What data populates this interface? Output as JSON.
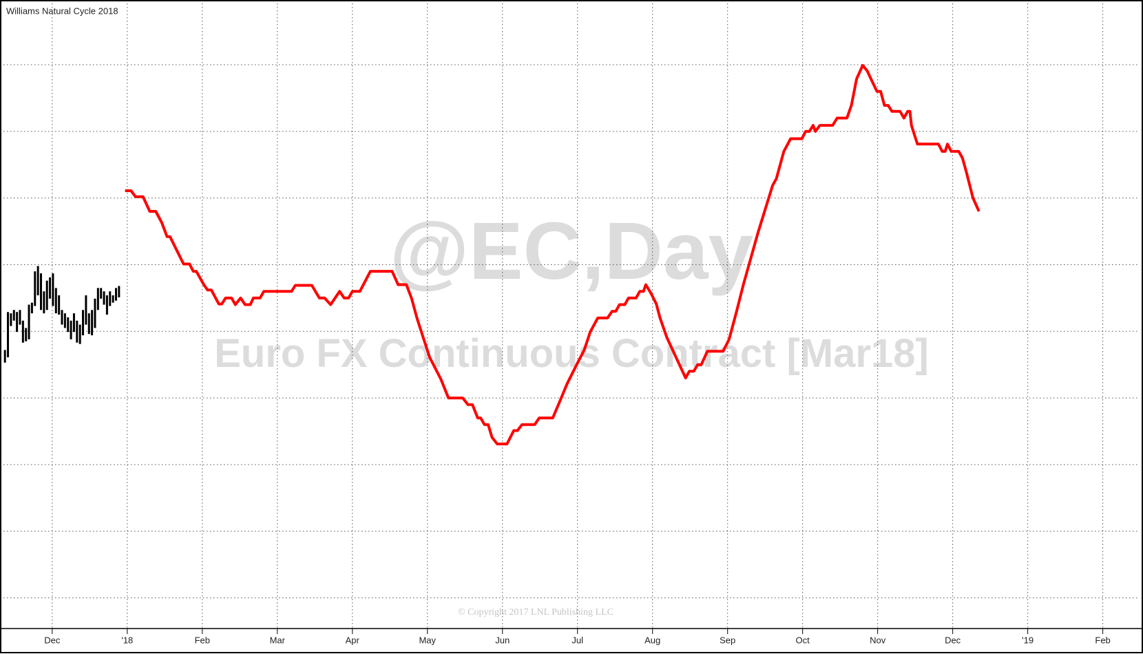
{
  "chart_data": {
    "type": "line",
    "title": "Williams Natural Cycle 2018",
    "watermark": "@EC,Day",
    "watermark_subtitle": "Euro FX Continuous Contract [Mar18]",
    "copyright": "© Copyright 2017 LNL Publishing LLC",
    "xlim": [
      -0.65,
      14.49
    ],
    "ylim": [
      0.54,
      9.92
    ],
    "xticks": [
      {
        "value": 0,
        "label": "Dec"
      },
      {
        "value": 1,
        "label": "'18"
      },
      {
        "value": 2,
        "label": "Feb"
      },
      {
        "value": 3,
        "label": "Mar"
      },
      {
        "value": 4,
        "label": "Apr"
      },
      {
        "value": 5,
        "label": "May"
      },
      {
        "value": 6,
        "label": "Jun"
      },
      {
        "value": 7,
        "label": "Jul"
      },
      {
        "value": 8,
        "label": "Aug"
      },
      {
        "value": 9,
        "label": "Sep"
      },
      {
        "value": 10,
        "label": "Oct"
      },
      {
        "value": 11,
        "label": "Nov"
      },
      {
        "value": 12,
        "label": "Dec"
      },
      {
        "value": 13,
        "label": "'19"
      },
      {
        "value": 14,
        "label": "Feb"
      }
    ],
    "yticks": [
      1,
      2,
      3,
      4,
      5,
      6,
      7,
      8,
      9
    ],
    "grid": true,
    "series": [
      {
        "color": "#000000",
        "x": [
          -0.63,
          -0.59,
          -0.55,
          -0.51,
          -0.47,
          -0.43,
          -0.39,
          -0.35,
          -0.31,
          -0.27,
          -0.23,
          -0.19,
          -0.15,
          -0.11,
          -0.07,
          -0.03,
          0.01,
          0.05,
          0.09,
          0.13,
          0.17,
          0.21,
          0.25,
          0.29,
          0.33,
          0.37,
          0.41,
          0.45,
          0.49,
          0.53,
          0.57,
          0.61,
          0.65,
          0.69,
          0.73,
          0.77,
          0.81,
          0.85,
          0.89
        ],
        "high": [
          4.72,
          5.29,
          5.27,
          5.32,
          5.29,
          5.32,
          5.16,
          5.05,
          5.4,
          5.43,
          5.9,
          5.98,
          5.87,
          5.6,
          5.76,
          5.81,
          5.87,
          5.65,
          5.54,
          5.32,
          5.27,
          5.21,
          5.16,
          5.27,
          5.16,
          5.1,
          5.32,
          5.54,
          5.27,
          5.32,
          5.49,
          5.65,
          5.65,
          5.6,
          5.54,
          5.6,
          5.54,
          5.65,
          5.68
        ],
        "low": [
          4.53,
          4.61,
          5.08,
          5.16,
          4.99,
          5.1,
          4.83,
          4.85,
          4.88,
          5.27,
          5.38,
          5.54,
          5.32,
          5.27,
          5.32,
          5.49,
          5.38,
          5.27,
          5.25,
          5.1,
          5.05,
          4.99,
          4.88,
          4.99,
          4.83,
          4.81,
          4.94,
          5.1,
          4.96,
          4.94,
          5.05,
          5.32,
          5.49,
          5.4,
          5.25,
          5.38,
          5.43,
          5.46,
          5.51
        ]
      },
      {
        "color": "#ff0000",
        "x": [
          0.97,
          1.05,
          1.11,
          1.21,
          1.3,
          1.38,
          1.46,
          1.53,
          1.57,
          1.75,
          1.83,
          1.88,
          1.92,
          2.02,
          2.07,
          2.12,
          2.22,
          2.26,
          2.31,
          2.39,
          2.44,
          2.51,
          2.57,
          2.64,
          2.68,
          2.77,
          2.82,
          3.19,
          3.24,
          3.46,
          3.56,
          3.63,
          3.71,
          3.77,
          3.83,
          3.89,
          3.95,
          4.0,
          4.1,
          4.24,
          4.53,
          4.61,
          4.72,
          4.79,
          4.86,
          4.92,
          5.03,
          5.18,
          5.28,
          5.47,
          5.54,
          5.6,
          5.67,
          5.71,
          5.76,
          5.81,
          5.86,
          5.93,
          6.06,
          6.15,
          6.2,
          6.26,
          6.43,
          6.49,
          6.67,
          6.78,
          6.86,
          6.98,
          7.09,
          7.17,
          7.27,
          7.4,
          7.46,
          7.51,
          7.56,
          7.63,
          7.68,
          7.78,
          7.83,
          7.88,
          7.91,
          7.98,
          8.05,
          8.1,
          8.19,
          8.44,
          8.49,
          8.55,
          8.6,
          8.65,
          8.73,
          8.94,
          9.02,
          9.12,
          9.21,
          9.31,
          9.41,
          9.6,
          9.65,
          9.75,
          9.84,
          9.99,
          10.04,
          10.09,
          10.14,
          10.17,
          10.23,
          10.4,
          10.46,
          10.59,
          10.65,
          10.72,
          10.8,
          10.86,
          10.91,
          10.99,
          11.04,
          11.09,
          11.14,
          11.19,
          11.3,
          11.35,
          11.4,
          11.43,
          11.45,
          11.53,
          11.81,
          11.86,
          11.9,
          11.93,
          11.98,
          12.08,
          12.13,
          12.18,
          12.27,
          12.35
        ],
        "values": [
          7.11,
          7.11,
          7.02,
          7.02,
          6.8,
          6.8,
          6.63,
          6.42,
          6.42,
          6.01,
          6.01,
          5.9,
          5.9,
          5.7,
          5.62,
          5.62,
          5.41,
          5.41,
          5.5,
          5.5,
          5.4,
          5.5,
          5.4,
          5.4,
          5.5,
          5.5,
          5.6,
          5.6,
          5.69,
          5.69,
          5.5,
          5.5,
          5.4,
          5.5,
          5.6,
          5.5,
          5.5,
          5.6,
          5.6,
          5.9,
          5.9,
          5.7,
          5.7,
          5.49,
          5.2,
          4.99,
          4.61,
          4.28,
          4.0,
          4.0,
          3.9,
          3.9,
          3.7,
          3.7,
          3.6,
          3.6,
          3.41,
          3.31,
          3.31,
          3.51,
          3.51,
          3.6,
          3.6,
          3.7,
          3.7,
          3.99,
          4.21,
          4.48,
          4.72,
          4.99,
          5.2,
          5.2,
          5.3,
          5.3,
          5.4,
          5.4,
          5.5,
          5.5,
          5.6,
          5.6,
          5.7,
          5.57,
          5.41,
          5.2,
          4.91,
          4.3,
          4.4,
          4.4,
          4.5,
          4.5,
          4.7,
          4.7,
          4.88,
          5.3,
          5.7,
          6.1,
          6.5,
          7.19,
          7.29,
          7.7,
          7.89,
          7.89,
          8.0,
          8.0,
          8.09,
          8.0,
          8.09,
          8.09,
          8.2,
          8.2,
          8.39,
          8.79,
          8.99,
          8.91,
          8.79,
          8.6,
          8.6,
          8.39,
          8.39,
          8.3,
          8.3,
          8.2,
          8.3,
          8.3,
          8.09,
          7.81,
          7.81,
          7.7,
          7.7,
          7.81,
          7.7,
          7.7,
          7.6,
          7.4,
          7.0,
          6.8
        ]
      }
    ]
  }
}
